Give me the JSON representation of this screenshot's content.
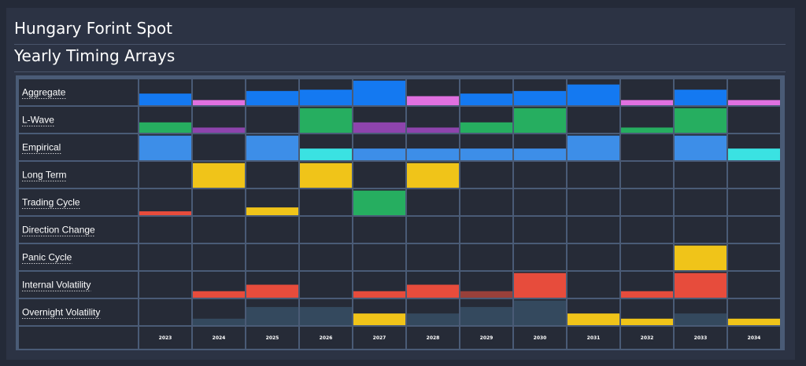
{
  "header": {
    "title": "Hungary Forint Spot",
    "subtitle": "Yearly Timing Arrays"
  },
  "colors": {
    "background": "#242a38",
    "panel": "#2c3344",
    "cell": "#262b37",
    "grid": "#4a5b76",
    "blue": "#1479f1",
    "pink": "#e070e0",
    "green": "#26ae60",
    "purple": "#8e44ad",
    "steel_blue": "#3d8ee8",
    "cyan": "#3ae2e2",
    "yellow": "#f0c419",
    "red": "#e74c3c",
    "dark_red": "#99403a",
    "slate": "#34495e"
  },
  "chart_data": {
    "type": "heatmap",
    "years": [
      "2023",
      "2024",
      "2025",
      "2026",
      "2027",
      "2028",
      "2029",
      "2030",
      "2031",
      "2032",
      "2033",
      "2034"
    ],
    "ylim": [
      0,
      1
    ],
    "rows": [
      {
        "label": "Aggregate",
        "values": [
          0.45,
          0.2,
          0.55,
          0.6,
          0.95,
          0.35,
          0.45,
          0.55,
          0.8,
          0.2,
          0.6,
          0.2
        ],
        "colors": [
          "blue",
          "pink",
          "blue",
          "blue",
          "blue",
          "pink",
          "blue",
          "blue",
          "blue",
          "pink",
          "blue",
          "pink"
        ]
      },
      {
        "label": "L-Wave",
        "values": [
          0.4,
          0.2,
          0,
          0.95,
          0.4,
          0.2,
          0.4,
          0.95,
          0,
          0.2,
          0.95,
          0
        ],
        "colors": [
          "green",
          "purple",
          "green",
          "green",
          "purple",
          "purple",
          "green",
          "green",
          "green",
          "green",
          "green",
          "green"
        ]
      },
      {
        "label": "Empirical",
        "values": [
          0.95,
          0,
          0.95,
          0.45,
          0.45,
          0.45,
          0.45,
          0.45,
          0.95,
          0,
          0.95,
          0.45
        ],
        "colors": [
          "steel_blue",
          "steel_blue",
          "steel_blue",
          "cyan",
          "steel_blue",
          "steel_blue",
          "steel_blue",
          "steel_blue",
          "steel_blue",
          "steel_blue",
          "steel_blue",
          "cyan"
        ]
      },
      {
        "label": "Long Term",
        "values": [
          0,
          0.95,
          0,
          0.95,
          0,
          0.95,
          0,
          0,
          0,
          0,
          0,
          0
        ],
        "colors": [
          "yellow",
          "yellow",
          "yellow",
          "yellow",
          "yellow",
          "yellow",
          "yellow",
          "yellow",
          "yellow",
          "yellow",
          "yellow",
          "yellow"
        ]
      },
      {
        "label": "Trading Cycle",
        "values": [
          0.15,
          0,
          0.3,
          0,
          0.95,
          0,
          0,
          0,
          0,
          0,
          0,
          0
        ],
        "colors": [
          "red",
          "red",
          "yellow",
          "green",
          "green",
          "green",
          "green",
          "green",
          "green",
          "green",
          "green",
          "green"
        ]
      },
      {
        "label": "Direction Change",
        "values": [
          0,
          0,
          0,
          0,
          0,
          0,
          0,
          0,
          0,
          0,
          0,
          0
        ],
        "colors": [
          "blue",
          "blue",
          "blue",
          "blue",
          "blue",
          "blue",
          "blue",
          "blue",
          "blue",
          "blue",
          "blue",
          "blue"
        ]
      },
      {
        "label": "Panic Cycle",
        "values": [
          0,
          0,
          0,
          0,
          0,
          0,
          0,
          0,
          0,
          0,
          0.95,
          0
        ],
        "colors": [
          "yellow",
          "yellow",
          "yellow",
          "yellow",
          "yellow",
          "yellow",
          "yellow",
          "yellow",
          "yellow",
          "yellow",
          "yellow",
          "yellow"
        ]
      },
      {
        "label": "Internal Volatility",
        "values": [
          0,
          0.25,
          0.5,
          0,
          0.25,
          0.5,
          0.25,
          0.95,
          0,
          0.25,
          0.95,
          0
        ],
        "colors": [
          "red",
          "red",
          "red",
          "red",
          "red",
          "red",
          "dark_red",
          "red",
          "red",
          "red",
          "red",
          "red"
        ]
      },
      {
        "label": "Overnight Volatility",
        "values": [
          0,
          0.25,
          0.7,
          0.7,
          0.45,
          0.45,
          0.7,
          0.95,
          0.45,
          0.25,
          0.45,
          0.25
        ],
        "colors": [
          "slate",
          "slate",
          "slate",
          "slate",
          "yellow",
          "slate",
          "slate",
          "slate",
          "yellow",
          "yellow",
          "slate",
          "yellow"
        ]
      }
    ]
  }
}
